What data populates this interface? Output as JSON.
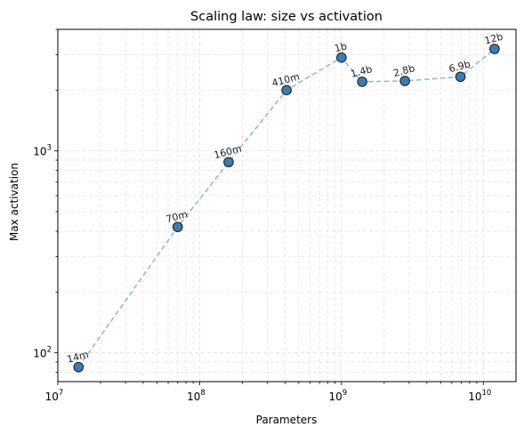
{
  "chart_data": {
    "type": "scatter",
    "title": "Scaling law: size vs activation",
    "xlabel": "Parameters",
    "ylabel": "Max activation",
    "xscale": "log",
    "yscale": "log",
    "xlim": [
      10000000,
      17000000000
    ],
    "ylim": [
      72,
      4000
    ],
    "grid": "on (major and minor, dashed)",
    "line_style": "dashed",
    "colors": {
      "line": "#8fbbdb",
      "marker_fill": "#3a7db4",
      "marker_edge": "#1a1a1a",
      "grid": "#e3e3e3"
    },
    "x_ticks": [
      {
        "base": "10",
        "exp": "7",
        "value": 10000000
      },
      {
        "base": "10",
        "exp": "8",
        "value": 100000000
      },
      {
        "base": "10",
        "exp": "9",
        "value": 1000000000
      },
      {
        "base": "10",
        "exp": "10",
        "value": 10000000000
      }
    ],
    "y_ticks": [
      {
        "base": "10",
        "exp": "2",
        "value": 100
      },
      {
        "base": "10",
        "exp": "3",
        "value": 1000
      }
    ],
    "points": [
      {
        "label": "14m",
        "x": 14000000,
        "y": 85
      },
      {
        "label": "70m",
        "x": 70000000,
        "y": 420
      },
      {
        "label": "160m",
        "x": 160000000,
        "y": 880
      },
      {
        "label": "410m",
        "x": 410000000,
        "y": 2000
      },
      {
        "label": "1b",
        "x": 1000000000,
        "y": 2900
      },
      {
        "label": "1.4b",
        "x": 1400000000,
        "y": 2200
      },
      {
        "label": "2.8b",
        "x": 2800000000,
        "y": 2220
      },
      {
        "label": "6.9b",
        "x": 6900000000,
        "y": 2330
      },
      {
        "label": "12b",
        "x": 12000000000,
        "y": 3200
      }
    ]
  }
}
